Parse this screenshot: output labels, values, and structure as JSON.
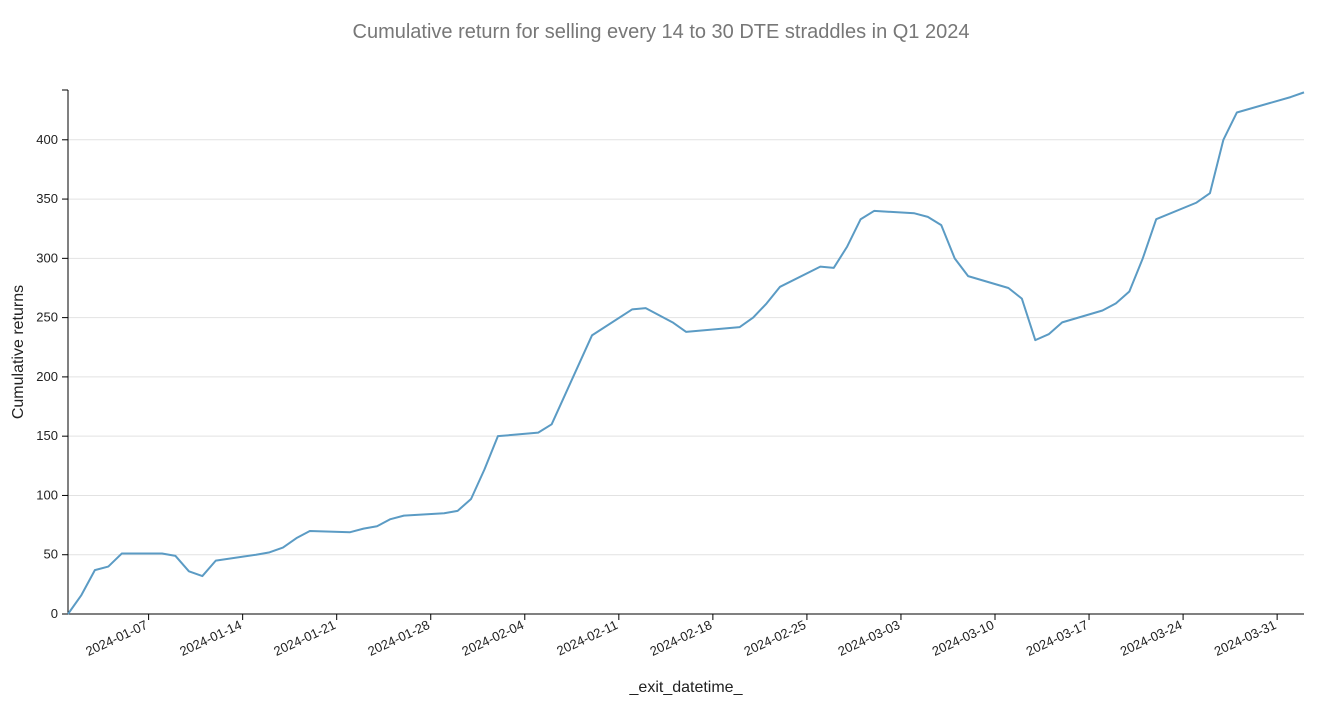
{
  "chart_data": {
    "type": "line",
    "title": "Cumulative return for selling every 14 to 30 DTE straddles in Q1 2024",
    "x_label": "_exit_datetime_",
    "y_label": "Cumulative returns",
    "x": [
      "2024-01-01",
      "2024-01-02",
      "2024-01-03",
      "2024-01-04",
      "2024-01-05",
      "2024-01-08",
      "2024-01-09",
      "2024-01-10",
      "2024-01-11",
      "2024-01-12",
      "2024-01-15",
      "2024-01-16",
      "2024-01-17",
      "2024-01-18",
      "2024-01-19",
      "2024-01-22",
      "2024-01-23",
      "2024-01-24",
      "2024-01-25",
      "2024-01-26",
      "2024-01-29",
      "2024-01-30",
      "2024-01-31",
      "2024-02-01",
      "2024-02-02",
      "2024-02-05",
      "2024-02-06",
      "2024-02-07",
      "2024-02-08",
      "2024-02-09",
      "2024-02-12",
      "2024-02-13",
      "2024-02-14",
      "2024-02-15",
      "2024-02-16",
      "2024-02-20",
      "2024-02-21",
      "2024-02-22",
      "2024-02-23",
      "2024-02-26",
      "2024-02-27",
      "2024-02-28",
      "2024-02-29",
      "2024-03-01",
      "2024-03-04",
      "2024-03-05",
      "2024-03-06",
      "2024-03-07",
      "2024-03-08",
      "2024-03-11",
      "2024-03-12",
      "2024-03-13",
      "2024-03-14",
      "2024-03-15",
      "2024-03-18",
      "2024-03-19",
      "2024-03-20",
      "2024-03-21",
      "2024-03-22",
      "2024-03-25",
      "2024-03-26",
      "2024-03-27",
      "2024-03-28",
      "2024-04-01",
      "2024-04-02"
    ],
    "series": [
      {
        "name": "Cumulative returns",
        "color": "#5b9bc4",
        "values": [
          0,
          16,
          37,
          40,
          51,
          51,
          49,
          36,
          32,
          45,
          50,
          52,
          56,
          64,
          70,
          69,
          72,
          74,
          80,
          83,
          85,
          87,
          97,
          122,
          150,
          153,
          160,
          185,
          210,
          235,
          257,
          258,
          252,
          246,
          238,
          242,
          250,
          262,
          276,
          293,
          292,
          310,
          333,
          340,
          338,
          335,
          328,
          300,
          285,
          275,
          266,
          231,
          236,
          246,
          256,
          262,
          272,
          300,
          333,
          347,
          355,
          400,
          423,
          436,
          440
        ]
      }
    ],
    "xlim": [
      "2024-01-01",
      "2024-04-02"
    ],
    "xticks": [
      "2024-01-07",
      "2024-01-14",
      "2024-01-21",
      "2024-01-28",
      "2024-02-04",
      "2024-02-11",
      "2024-02-18",
      "2024-02-25",
      "2024-03-03",
      "2024-03-10",
      "2024-03-17",
      "2024-03-24",
      "2024-03-31"
    ],
    "ylim": [
      0,
      442
    ],
    "yticks": [
      0,
      50,
      100,
      150,
      200,
      250,
      300,
      350,
      400
    ],
    "grid": true
  }
}
